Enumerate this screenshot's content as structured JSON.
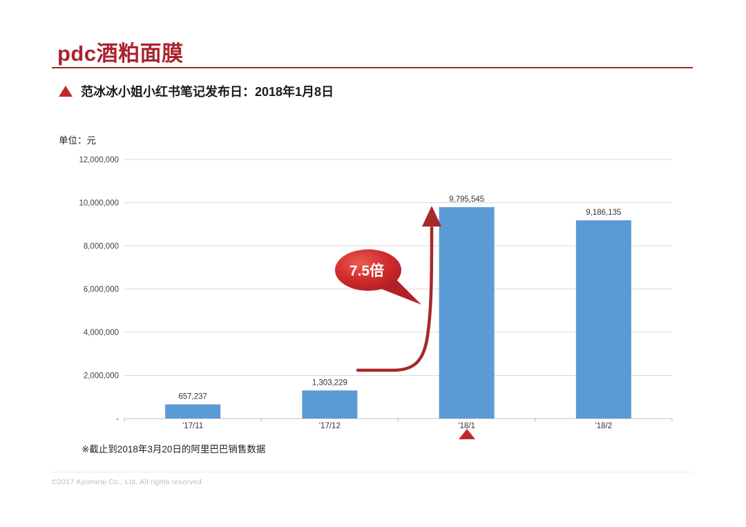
{
  "page": {
    "title": "pdc酒粕面膜",
    "subtitle": "范冰冰小姐小红书笔记发布日：2018年1月8日",
    "footnote": "※截止到2018年3月20日的阿里巴巴销售数据",
    "footer": "©2017 Kyomirai Co., Ltd. All rights reserved."
  },
  "colors": {
    "accent_red": "#a8232e",
    "bar_blue": "#5b9bd5",
    "arrow_red": "#a5282b",
    "bubble_red_light": "#ea5a4f",
    "bubble_red_dark": "#b01e24",
    "marker_red": "#c0292c",
    "gridline": "#d9d9d9",
    "axis_line": "#bfbfbf",
    "tick_label": "#404040",
    "value_label": "#333333"
  },
  "chart_data": {
    "type": "bar",
    "title": "",
    "ylabel": "单位：元",
    "xlabel": "",
    "categories": [
      "'17/11",
      "'17/12",
      "'18/1",
      "'18/2"
    ],
    "values": [
      657237,
      1303229,
      9795545,
      9186135
    ],
    "value_labels": [
      "657,237",
      "1,303,229",
      "9,795,545",
      "9,186,135"
    ],
    "ylim": [
      0,
      12000000
    ],
    "y_ticks": [
      0,
      2000000,
      4000000,
      6000000,
      8000000,
      10000000,
      12000000
    ],
    "y_tick_labels": [
      "-",
      "2,000,000",
      "4,000,000",
      "6,000,000",
      "8,000,000",
      "10,000,000",
      "12,000,000"
    ],
    "grid": true,
    "legend": false,
    "annotation": {
      "text": "7.5倍",
      "target_category": "'18/1"
    },
    "event_marker_category": "'18/1"
  }
}
